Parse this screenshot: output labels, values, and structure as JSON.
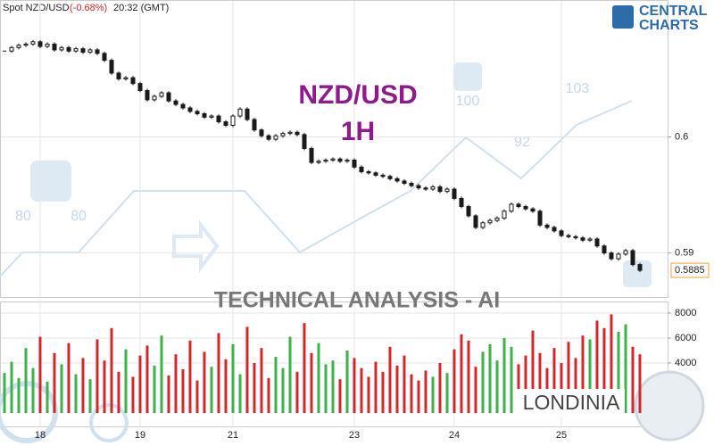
{
  "header": {
    "symbol": "Spot NZD/USD",
    "change": "(-0.68%)",
    "time": "20:32 (GMT)"
  },
  "brand": [
    "CENTRAL",
    "CHARTS"
  ],
  "banner": "TECHNICAL  ANALYSIS - AI",
  "watermark": "LONDINIA",
  "watermark_scores": [
    80,
    80,
    100,
    92,
    103
  ],
  "chart_data": [
    {
      "type": "candlestick",
      "title": "NZD/USD",
      "subtitle": "1H",
      "closes": [
        0.6074,
        0.6077,
        0.6079,
        0.608,
        0.6082,
        0.6078,
        0.608,
        0.6075,
        0.6077,
        0.6074,
        0.6076,
        0.6073,
        0.6075,
        0.6072,
        0.6066,
        0.6055,
        0.605,
        0.6051,
        0.6046,
        0.604,
        0.6032,
        0.6035,
        0.6038,
        0.6031,
        0.6028,
        0.6025,
        0.6022,
        0.602,
        0.6017,
        0.6018,
        0.6013,
        0.601,
        0.6018,
        0.6024,
        0.6015,
        0.6006,
        0.6001,
        0.5998,
        0.6001,
        0.6003,
        0.6004,
        0.6002,
        0.599,
        0.5978,
        0.5979,
        0.598,
        0.5981,
        0.5979,
        0.598,
        0.5974,
        0.597,
        0.5969,
        0.5967,
        0.5966,
        0.5964,
        0.5962,
        0.596,
        0.5958,
        0.5956,
        0.5955,
        0.5957,
        0.5953,
        0.5955,
        0.5947,
        0.594,
        0.5932,
        0.5922,
        0.5926,
        0.5928,
        0.593,
        0.5936,
        0.5942,
        0.594,
        0.5938,
        0.5936,
        0.5924,
        0.5922,
        0.5919,
        0.5915,
        0.5914,
        0.5913,
        0.5911,
        0.5912,
        0.5906,
        0.59,
        0.5895,
        0.5899,
        0.5902,
        0.589,
        0.5885
      ],
      "last_price_label": "0.5885",
      "ylim": [
        0.5862,
        0.6118
      ],
      "yticks": [
        0.6,
        0.59
      ],
      "up_color": "#1a1a1a",
      "down_color": "#1a1a1a",
      "grid": true
    },
    {
      "type": "bar",
      "categories": [
        null,
        null,
        null,
        null,
        null,
        "18",
        null,
        null,
        null,
        null,
        null,
        null,
        null,
        null,
        null,
        null,
        null,
        null,
        null,
        "19",
        null,
        null,
        null,
        null,
        null,
        null,
        null,
        null,
        null,
        null,
        null,
        null,
        "21",
        null,
        null,
        null,
        null,
        null,
        null,
        null,
        null,
        null,
        null,
        null,
        null,
        null,
        null,
        null,
        null,
        "23",
        null,
        null,
        null,
        null,
        null,
        null,
        null,
        null,
        null,
        null,
        null,
        null,
        null,
        "24",
        null,
        null,
        null,
        null,
        null,
        null,
        null,
        null,
        null,
        null,
        null,
        null,
        null,
        null,
        "25",
        null,
        null,
        null,
        null,
        null,
        null,
        null,
        null,
        null,
        null,
        null
      ],
      "values": [
        3200,
        4100,
        2800,
        5200,
        3600,
        6100,
        2500,
        4800,
        3900,
        5600,
        3100,
        4400,
        2700,
        5900,
        4200,
        6800,
        3300,
        5100,
        2900,
        4600,
        5400,
        3800,
        6200,
        3000,
        4700,
        3500,
        5800,
        2600,
        4900,
        3700,
        6400,
        4300,
        5500,
        3100,
        6900,
        4000,
        5200,
        2800,
        4500,
        3600,
        6100,
        3300,
        7200,
        4800,
        5600,
        3900,
        4200,
        2700,
        5000,
        4400,
        3600,
        2900,
        4100,
        3300,
        5300,
        3800,
        4600,
        3100,
        2600,
        3400,
        2900,
        4000,
        3200,
        5100,
        6300,
        5800,
        3700,
        4900,
        5500,
        4200,
        6000,
        5300,
        3900,
        4600,
        6600,
        4800,
        3600,
        5200,
        4000,
        5700,
        4400,
        6200,
        5900,
        7400,
        6800,
        7900,
        6500,
        7100,
        5300,
        4700
      ],
      "up_color": "#3cb34a",
      "down_color": "#d62728",
      "ylim": [
        0,
        9000
      ],
      "yticks": [
        4000,
        6000,
        8000
      ],
      "grid": true
    }
  ]
}
